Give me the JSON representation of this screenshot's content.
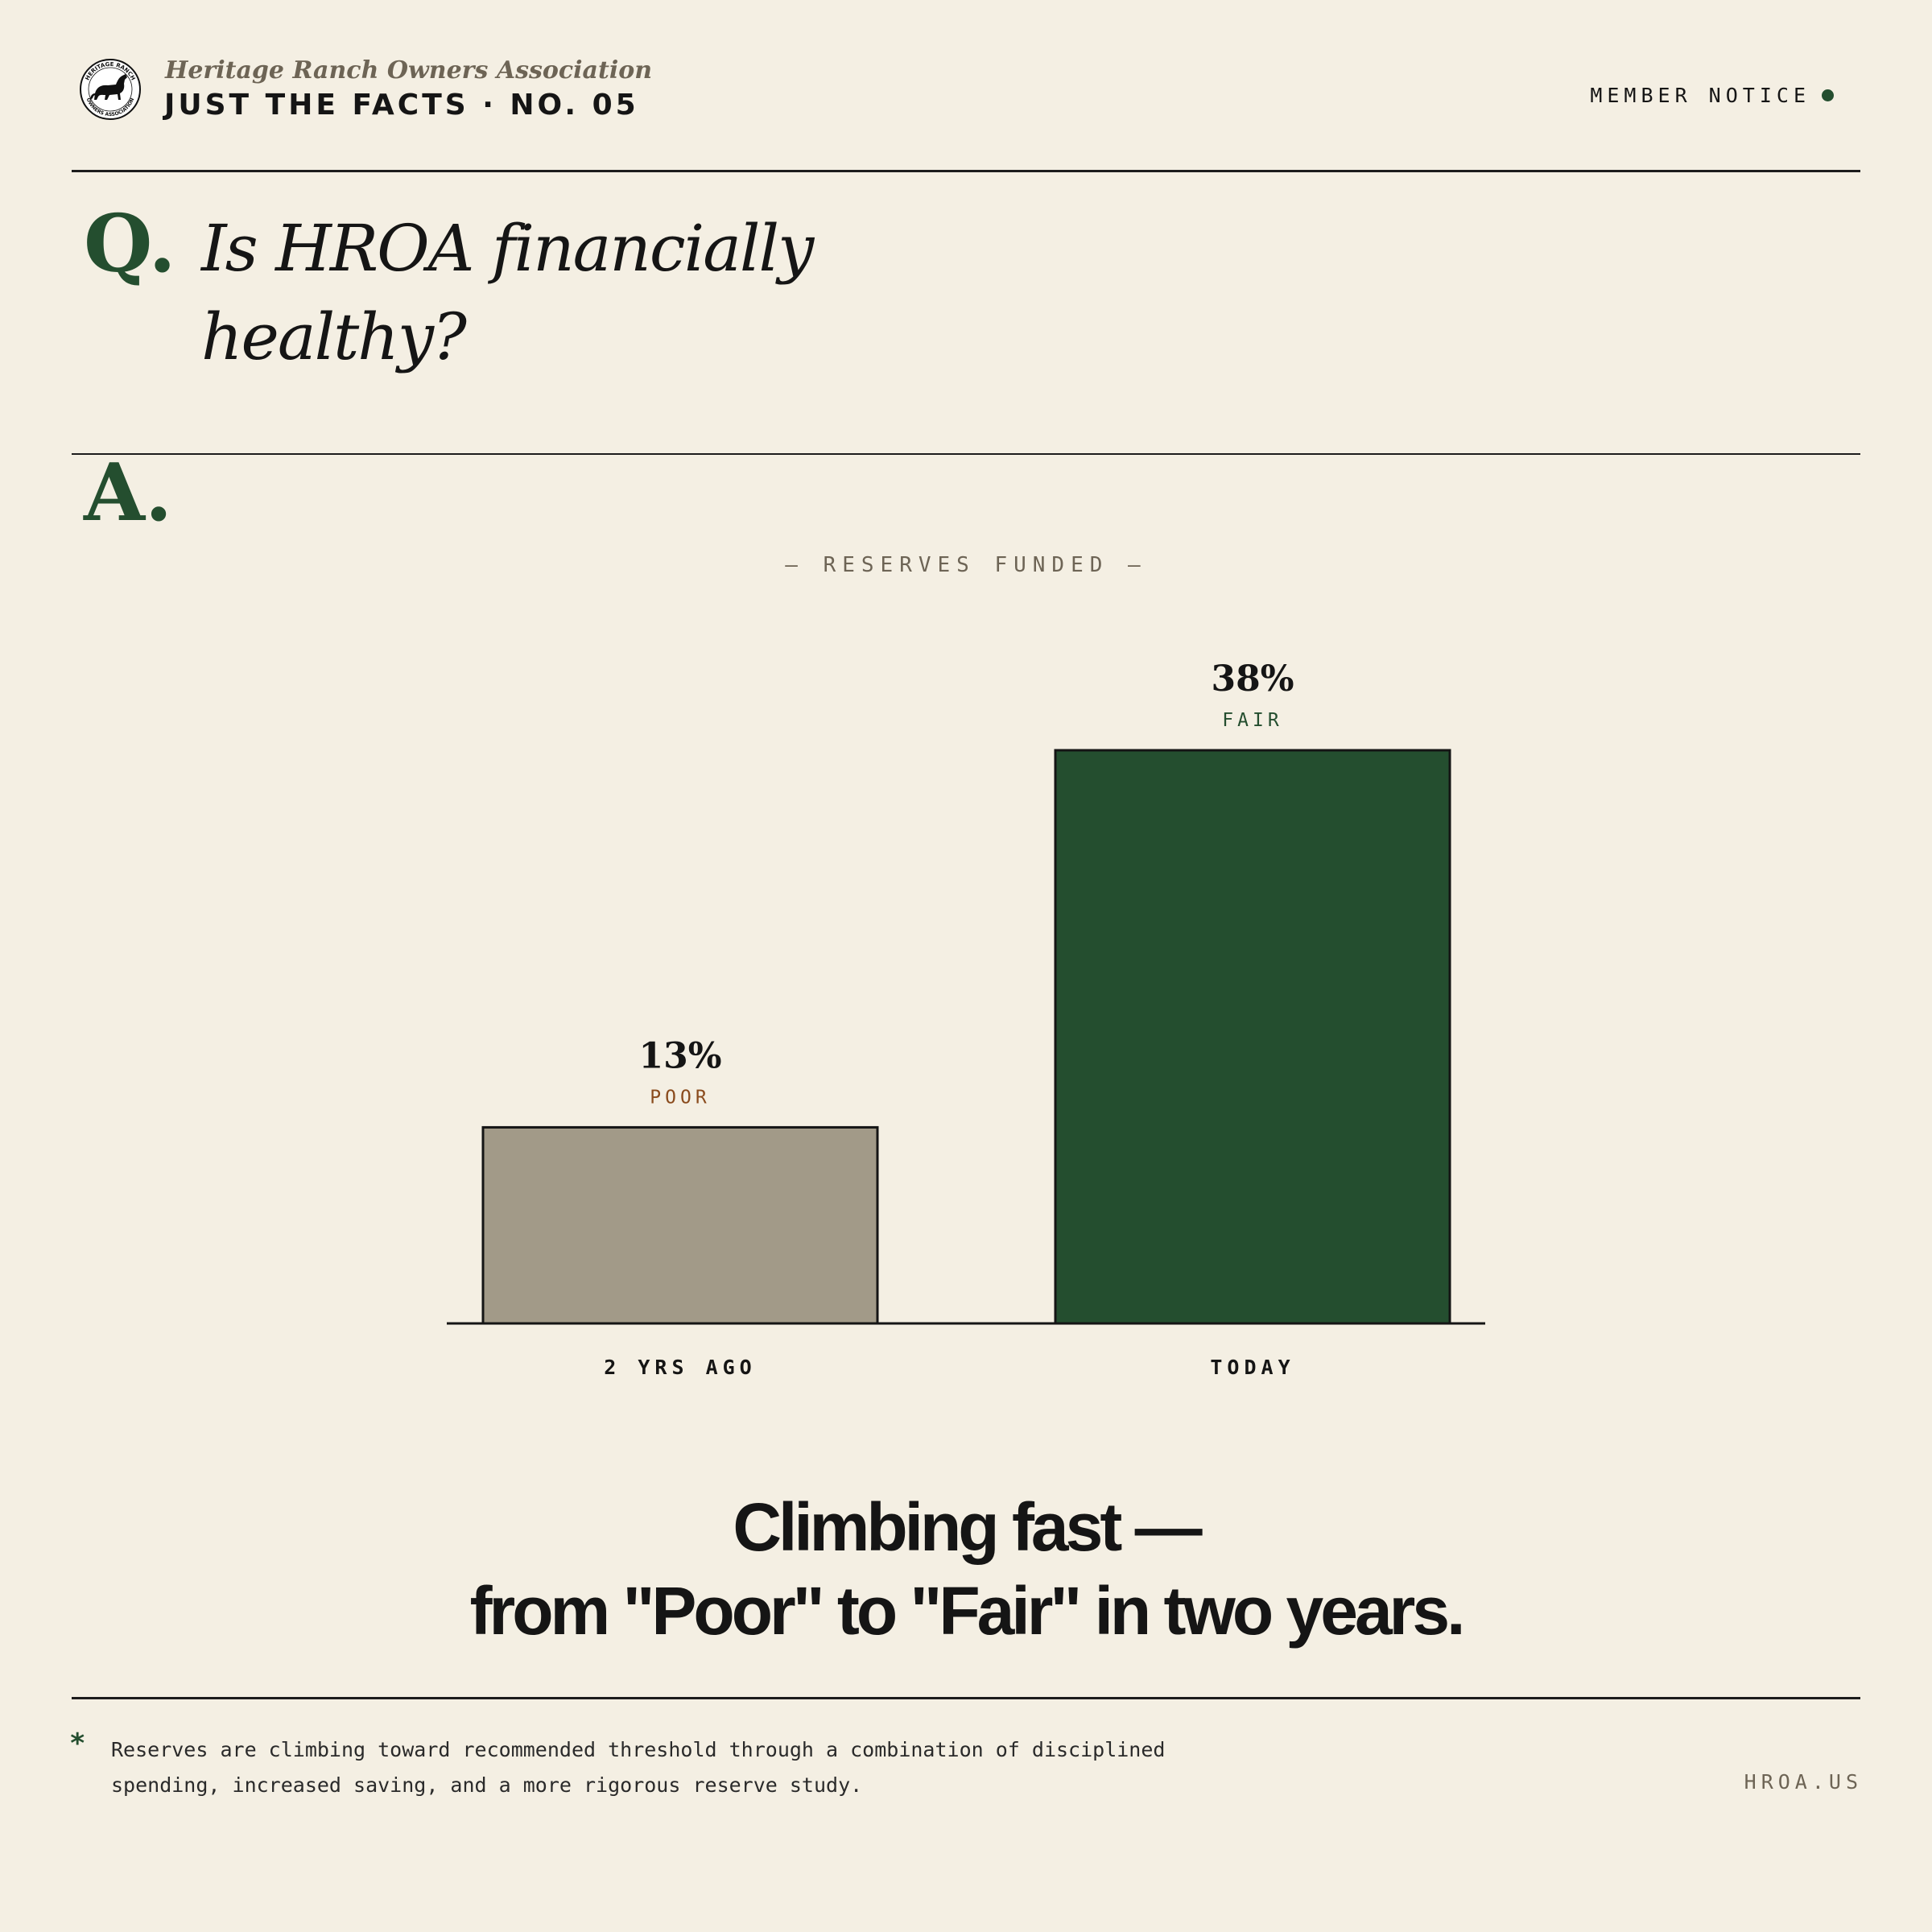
{
  "header": {
    "org_name": "Heritage Ranch Owners Association",
    "issue_title": "JUST THE FACTS · NO. 05",
    "notice_label": "MEMBER NOTICE",
    "logo": {
      "icon": "horse-seal-icon",
      "ring_text_top": "HERITAGE RANCH",
      "ring_text_bottom": "OWNERS ASSOCIATION"
    }
  },
  "question": {
    "marker": "Q.",
    "text": "Is HROA financially healthy?"
  },
  "answer": {
    "marker": "A."
  },
  "chart_data": {
    "type": "bar",
    "title": "— RESERVES FUNDED —",
    "categories": [
      "2 YRS AGO",
      "TODAY"
    ],
    "values": [
      13,
      38
    ],
    "value_labels": [
      "13%",
      "38%"
    ],
    "ratings": [
      "POOR",
      "FAIR"
    ],
    "colors": [
      "#a29a88",
      "#244e2f"
    ],
    "rating_colors": [
      "#8a4b1d",
      "#244e2f"
    ],
    "xlabel": "",
    "ylabel": "",
    "ylim": [
      0,
      38
    ],
    "grid": false
  },
  "headline": {
    "line1": "Climbing fast —",
    "line2": "from \"Poor\" to \"Fair\" in two years."
  },
  "footer": {
    "asterisk": "*",
    "note": "Reserves are climbing toward recommended threshold through a combination of disciplined spending, increased saving, and a more rigorous reserve study.",
    "site": "HROA.US"
  },
  "colors": {
    "background": "#f4efe3",
    "accent": "#244e2f",
    "ink": "#151515",
    "muted": "#6d6455"
  }
}
